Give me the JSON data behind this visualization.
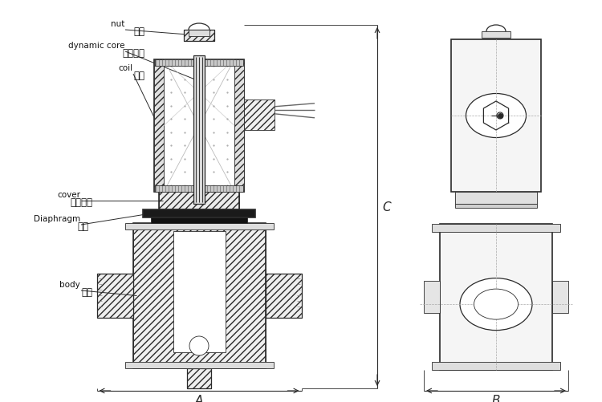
{
  "bg_color": "#ffffff",
  "line_color": "#2a2a2a",
  "dim_color": "#222222",
  "label_color": "#111111",
  "labels": {
    "nut_en": "nut",
    "nut_cn": "螺母",
    "dynamic_core_en": "dynamic core",
    "dynamic_core_cn": "可动铁组",
    "coil_en": "coil",
    "coil_cn": "线圈",
    "cover_en": "cover",
    "cover_cn": "本体盖板",
    "diaphragm_en": "Diaphragm",
    "diaphragm_cn": "膜片",
    "body_en": "body",
    "body_cn": "本体",
    "dim_A": "A",
    "dim_B": "B",
    "dim_C": "C"
  },
  "figure_width": 7.5,
  "figure_height": 5.02,
  "dpi": 100
}
